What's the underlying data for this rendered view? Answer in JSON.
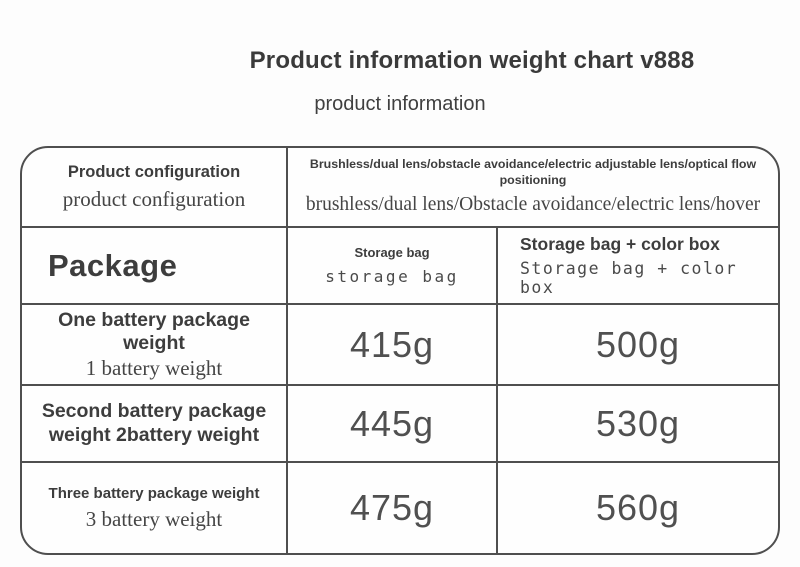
{
  "page": {
    "title": "Product information weight chart v888",
    "subtitle": "product information"
  },
  "colors": {
    "text_primary": "#3d3d3d",
    "text_secondary": "#454545",
    "border": "#4f4f4f",
    "background": "#fdfdfd"
  },
  "table": {
    "rows": [
      {
        "cells": [
          {
            "primary": "Product configuration",
            "secondary": "product configuration"
          },
          {
            "primary": "Brushless/dual lens/obstacle avoidance/electric adjustable lens/optical flow positioning",
            "secondary": "brushless/dual lens/Obstacle avoidance/electric lens/hover"
          }
        ]
      },
      {
        "cells": [
          {
            "primary": "Package"
          },
          {
            "primary": "Storage bag",
            "secondary": "storage bag"
          },
          {
            "primary": "Storage bag + color box",
            "secondary": "Storage bag + color box"
          }
        ]
      },
      {
        "cells": [
          {
            "primary": "One battery package weight",
            "secondary": "1 battery weight"
          },
          {
            "value": "415g"
          },
          {
            "value": "500g"
          }
        ]
      },
      {
        "cells": [
          {
            "primary": "Second battery package weight 2battery weight"
          },
          {
            "value": "445g"
          },
          {
            "value": "530g"
          }
        ]
      },
      {
        "cells": [
          {
            "primary": "Three battery package weight",
            "secondary": "3 battery weight"
          },
          {
            "value": "475g"
          },
          {
            "value": "560g"
          }
        ]
      }
    ]
  }
}
